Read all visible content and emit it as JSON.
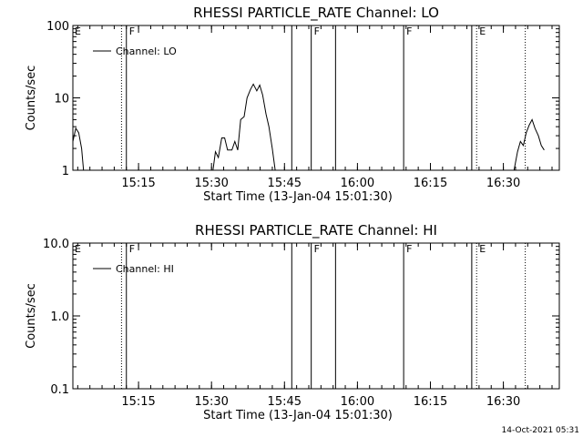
{
  "footer_timestamp": "14-Oct-2021 05:31",
  "chart_data": [
    {
      "type": "line",
      "title": "RHESSI PARTICLE_RATE Channel: LO",
      "xlabel": "Start Time (13-Jan-04 15:01:30)",
      "ylabel": "Counts/sec",
      "x_unit": "minutes since 15:01:30",
      "xlim": [
        0,
        100
      ],
      "ylim": [
        1,
        100
      ],
      "yscale": "log",
      "x_ticks": [
        {
          "label": "15:15",
          "x": 13.5
        },
        {
          "label": "15:30",
          "x": 28.5
        },
        {
          "label": "15:45",
          "x": 43.5
        },
        {
          "label": "16:00",
          "x": 58.5
        },
        {
          "label": "16:15",
          "x": 73.5
        },
        {
          "label": "16:30",
          "x": 88.5
        }
      ],
      "y_ticks": [
        {
          "label": "1",
          "y": 1
        },
        {
          "label": "10",
          "y": 10
        },
        {
          "label": "100",
          "y": 100
        }
      ],
      "legend": {
        "entries": [
          "Channel: LO"
        ],
        "position": "upper-left"
      },
      "series": [
        {
          "name": "Channel: LO",
          "points": [
            [
              0,
              2.5
            ],
            [
              0.6,
              3.8
            ],
            [
              1.2,
              3.3
            ],
            [
              1.8,
              2.0
            ],
            [
              2.2,
              1.0
            ],
            [
              28.8,
              1.0
            ],
            [
              29.3,
              1.8
            ],
            [
              29.9,
              1.5
            ],
            [
              30.6,
              2.8
            ],
            [
              31.2,
              2.8
            ],
            [
              31.8,
              1.9
            ],
            [
              32.7,
              1.9
            ],
            [
              33.3,
              2.5
            ],
            [
              33.9,
              1.9
            ],
            [
              34.5,
              5.0
            ],
            [
              35.2,
              5.5
            ],
            [
              35.8,
              10.0
            ],
            [
              36.5,
              13.0
            ],
            [
              37.1,
              15.5
            ],
            [
              37.8,
              12.5
            ],
            [
              38.4,
              15.0
            ],
            [
              39.0,
              11.0
            ],
            [
              39.7,
              6.0
            ],
            [
              40.3,
              4.0
            ],
            [
              41.0,
              2.0
            ],
            [
              41.6,
              1.0
            ],
            [
              90.7,
              1.0
            ],
            [
              91.4,
              1.8
            ],
            [
              92.0,
              2.5
            ],
            [
              92.6,
              2.2
            ],
            [
              93.2,
              3.3
            ],
            [
              93.8,
              4.2
            ],
            [
              94.4,
              5.0
            ],
            [
              95.0,
              3.8
            ],
            [
              95.7,
              3.0
            ],
            [
              96.3,
              2.2
            ],
            [
              96.9,
              1.9
            ]
          ]
        }
      ],
      "markers": [
        {
          "x": 10.0,
          "style": "dotted",
          "label": ""
        },
        {
          "x": 11.0,
          "style": "solid",
          "label": "F"
        },
        {
          "x": 45.0,
          "style": "solid",
          "label": ""
        },
        {
          "x": 49.0,
          "style": "solid",
          "label": "F"
        },
        {
          "x": 54.0,
          "style": "solid",
          "label": ""
        },
        {
          "x": 68.0,
          "style": "solid",
          "label": "F"
        },
        {
          "x": 82.0,
          "style": "solid",
          "label": ""
        },
        {
          "x": 83.0,
          "style": "dotted",
          "label": "E"
        },
        {
          "x": 93.0,
          "style": "dotted",
          "label": ""
        }
      ],
      "left_edge_label": "E"
    },
    {
      "type": "line",
      "title": "RHESSI PARTICLE_RATE Channel: HI",
      "xlabel": "Start Time (13-Jan-04 15:01:30)",
      "ylabel": "Counts/sec",
      "x_unit": "minutes since 15:01:30",
      "xlim": [
        0,
        100
      ],
      "ylim": [
        0.1,
        10.0
      ],
      "yscale": "log",
      "x_ticks": [
        {
          "label": "15:15",
          "x": 13.5
        },
        {
          "label": "15:30",
          "x": 28.5
        },
        {
          "label": "15:45",
          "x": 43.5
        },
        {
          "label": "16:00",
          "x": 58.5
        },
        {
          "label": "16:15",
          "x": 73.5
        },
        {
          "label": "16:30",
          "x": 88.5
        }
      ],
      "y_ticks": [
        {
          "label": "0.1",
          "y": 0.1
        },
        {
          "label": "1.0",
          "y": 1.0
        },
        {
          "label": "10.0",
          "y": 10.0
        }
      ],
      "legend": {
        "entries": [
          "Channel: HI"
        ],
        "position": "upper-left"
      },
      "series": [
        {
          "name": "Channel: HI",
          "points": []
        }
      ],
      "markers": [
        {
          "x": 10.0,
          "style": "dotted",
          "label": ""
        },
        {
          "x": 11.0,
          "style": "solid",
          "label": "F"
        },
        {
          "x": 45.0,
          "style": "solid",
          "label": ""
        },
        {
          "x": 49.0,
          "style": "solid",
          "label": "F"
        },
        {
          "x": 54.0,
          "style": "solid",
          "label": ""
        },
        {
          "x": 68.0,
          "style": "solid",
          "label": "F"
        },
        {
          "x": 82.0,
          "style": "solid",
          "label": ""
        },
        {
          "x": 83.0,
          "style": "dotted",
          "label": "E"
        },
        {
          "x": 93.0,
          "style": "dotted",
          "label": ""
        }
      ],
      "left_edge_label": "E"
    }
  ]
}
